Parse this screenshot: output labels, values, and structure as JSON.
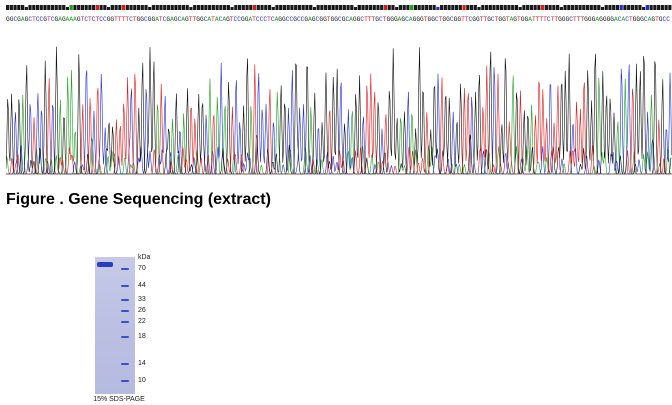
{
  "sequence": {
    "bases": "GGCGAGCTCCGTCGAGAAAGTCTCTCCGGTTTTCTGGCGGATCGAGCAGTTGGCATACAGTCCGGATCCCTCAGGCCGCCGAGCGGTGGCGCAGGCTTTGCTGGGAGCAGGGTGGCTGGCGGTTCGGTTGCTGGTAGTGGATTTTCTTGGGCTTTGGGAGGGGACACTGGGCAGTGCC",
    "colors": {
      "A": "#1aa31a",
      "C": "#1f2fd6",
      "G": "#111111",
      "T": "#e01818"
    }
  },
  "figure_caption": "Figure . Gene Sequencing (extract)",
  "gel": {
    "unit_label": "kDa",
    "markers": [
      {
        "kda": "70",
        "pos": 0.09
      },
      {
        "kda": "44",
        "pos": 0.21
      },
      {
        "kda": "33",
        "pos": 0.315
      },
      {
        "kda": "26",
        "pos": 0.395
      },
      {
        "kda": "22",
        "pos": 0.475
      },
      {
        "kda": "18",
        "pos": 0.585
      },
      {
        "kda": "14",
        "pos": 0.78
      },
      {
        "kda": "10",
        "pos": 0.905
      }
    ],
    "sample_band_pos": 0.05,
    "caption": "15% SDS-PAGE"
  }
}
